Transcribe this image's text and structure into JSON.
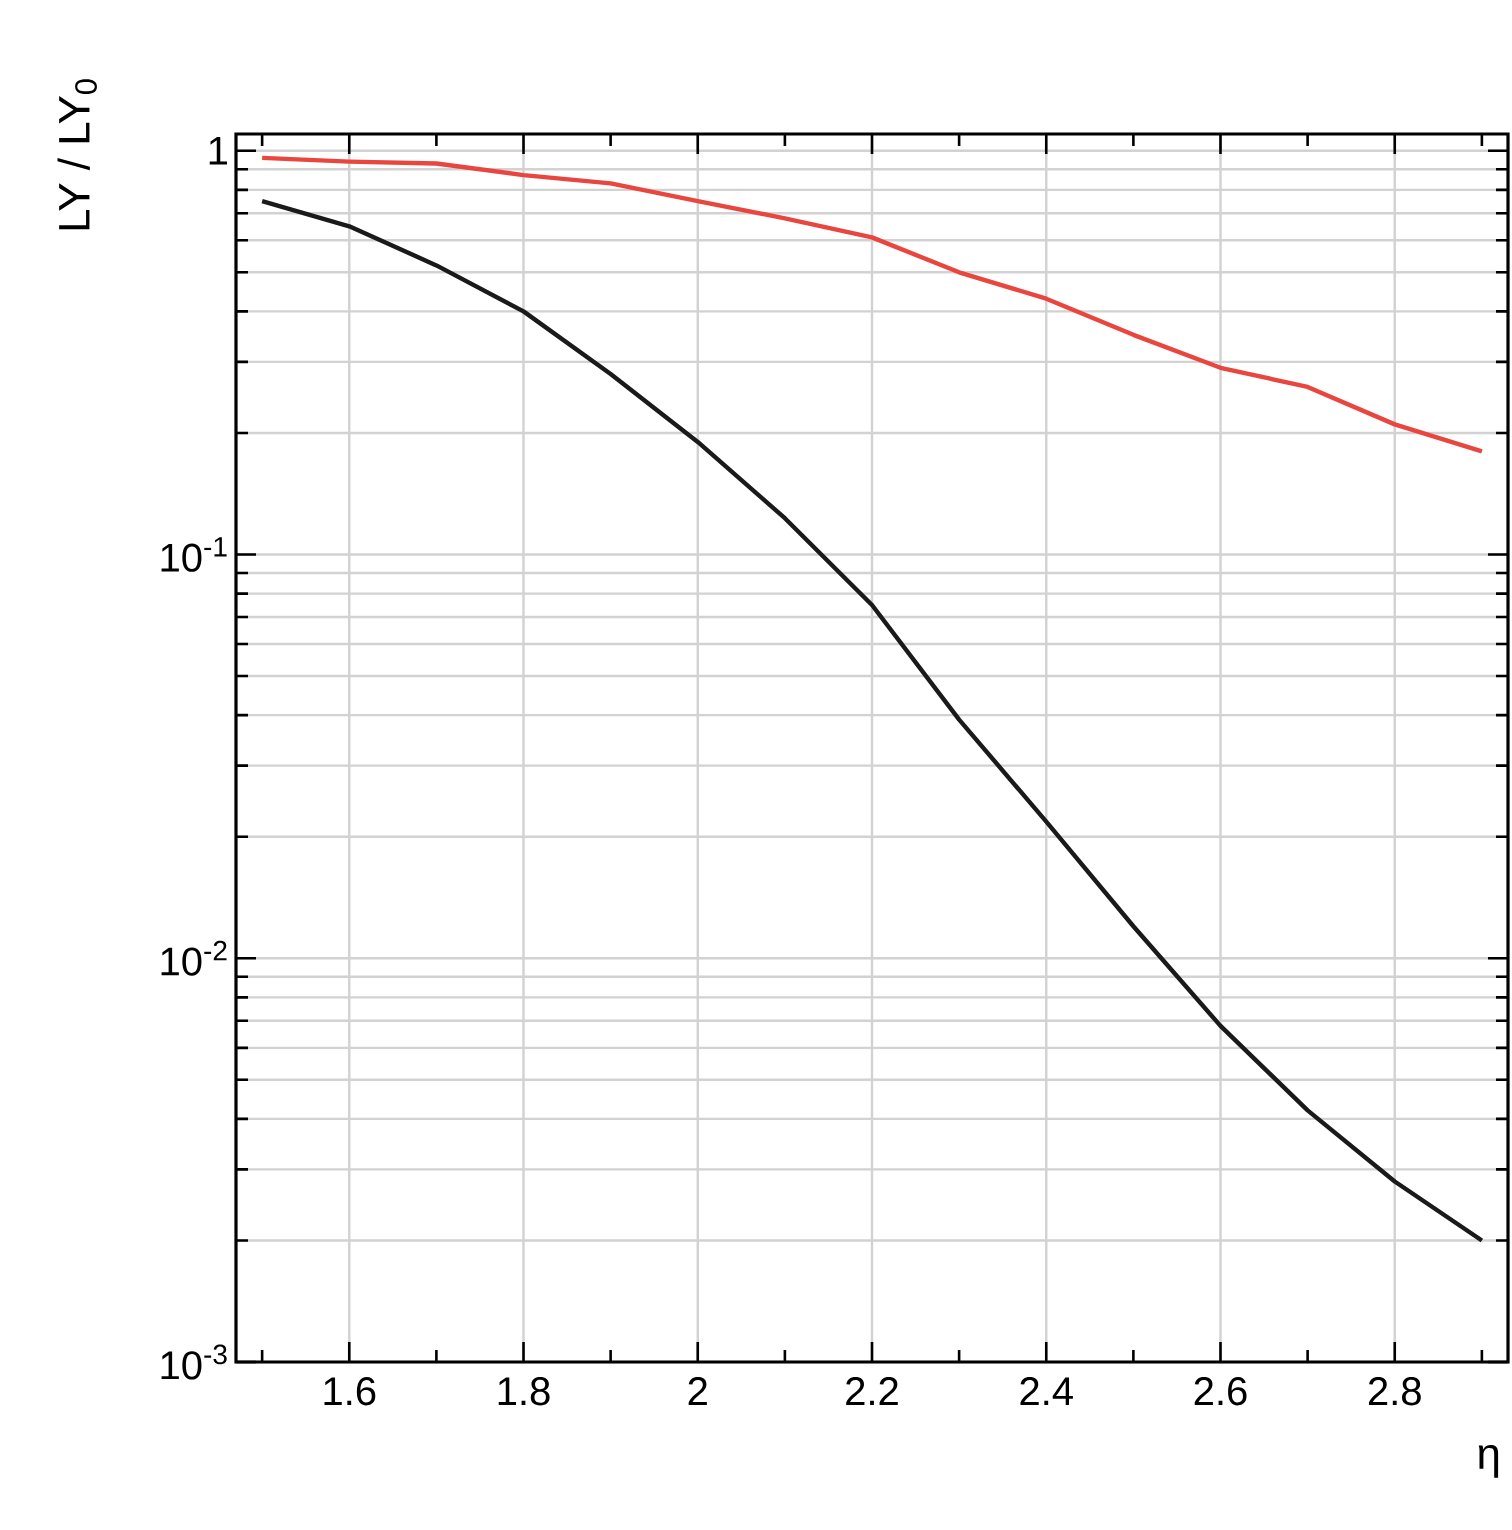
{
  "chart_data": {
    "type": "line",
    "xlabel": "η",
    "ylabel": "LY / LY$_{0}$",
    "x": [
      1.5,
      1.6,
      1.7,
      1.8,
      1.9,
      2.0,
      2.1,
      2.2,
      2.3,
      2.4,
      2.5,
      2.6,
      2.7,
      2.8,
      2.9
    ],
    "series": [
      {
        "color": "#e8463e",
        "values": [
          0.96,
          0.94,
          0.93,
          0.87,
          0.83,
          0.75,
          0.68,
          0.61,
          0.5,
          0.43,
          0.35,
          0.29,
          0.26,
          0.21,
          0.18
        ]
      },
      {
        "color": "#1a1a1a",
        "values": [
          0.75,
          0.65,
          0.52,
          0.4,
          0.28,
          0.19,
          0.123,
          0.075,
          0.039,
          0.0218,
          0.012,
          0.0068,
          0.0042,
          0.0028,
          0.002
        ]
      }
    ],
    "xlim": [
      1.47,
      2.93
    ],
    "ylim": [
      0.001,
      1.1
    ],
    "log": "y",
    "xticks": [
      1.6,
      1.8,
      2,
      2.2,
      2.4,
      2.6,
      2.8
    ],
    "yticks": [
      {
        "value": 0.001,
        "label": "10$^{-3}$"
      },
      {
        "value": 0.01,
        "label": "10$^{-2}$"
      },
      {
        "value": 0.1,
        "label": "10$^{-1}$"
      },
      1
    ],
    "grid": true,
    "marker": "none",
    "line_style": "solid"
  }
}
